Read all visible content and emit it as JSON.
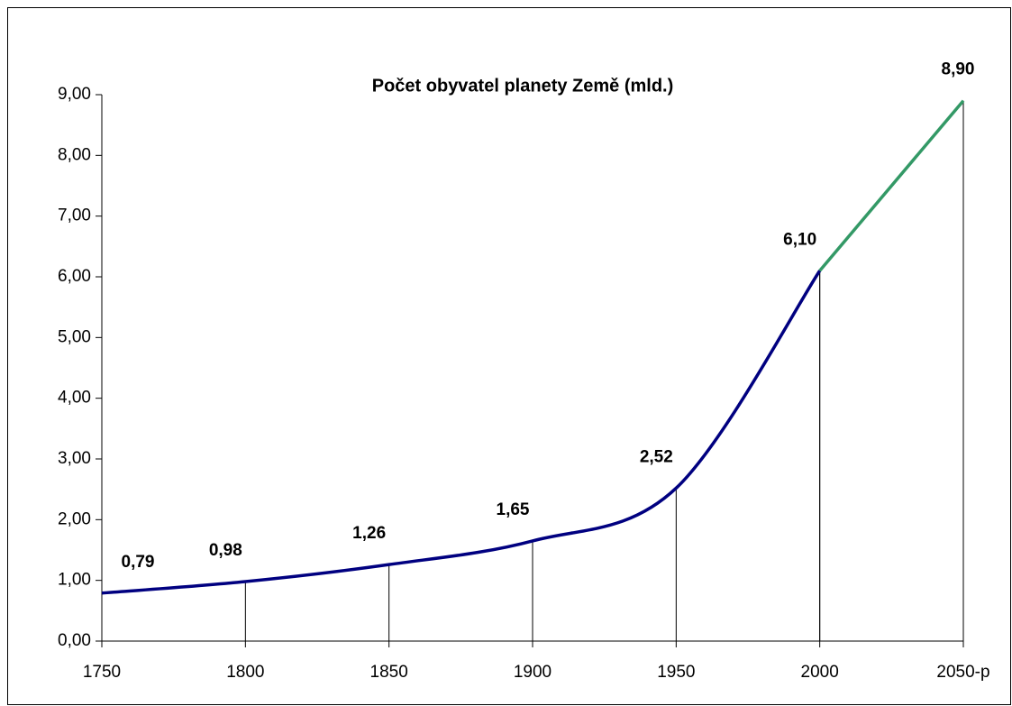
{
  "chart_data": {
    "type": "line",
    "title": "Počet obyvatel planety Země (mld.)",
    "categories": [
      "1750",
      "1800",
      "1850",
      "1900",
      "1950",
      "2000",
      "2050-p"
    ],
    "series": [
      {
        "color": "#000080",
        "values": [
          0.79,
          0.98,
          1.26,
          1.65,
          2.52,
          6.1,
          null
        ],
        "value_labels": [
          "0,79",
          "0,98",
          "1,26",
          "1,65",
          "2,52",
          "6,10",
          null
        ]
      },
      {
        "color": "#339966",
        "values": [
          null,
          null,
          null,
          null,
          null,
          6.1,
          8.9
        ],
        "value_labels": [
          null,
          null,
          null,
          null,
          null,
          null,
          "8,90"
        ]
      }
    ],
    "ylim": [
      0,
      9
    ],
    "yticks": [
      {
        "value": 0,
        "label": "0,00"
      },
      {
        "value": 1,
        "label": "1,00"
      },
      {
        "value": 2,
        "label": "2,00"
      },
      {
        "value": 3,
        "label": "3,00"
      },
      {
        "value": 4,
        "label": "4,00"
      },
      {
        "value": 5,
        "label": "5,00"
      },
      {
        "value": 6,
        "label": "6,00"
      },
      {
        "value": 7,
        "label": "7,00"
      },
      {
        "value": 8,
        "label": "8,00"
      },
      {
        "value": 9,
        "label": "9,00"
      }
    ],
    "drop_lines": true
  }
}
